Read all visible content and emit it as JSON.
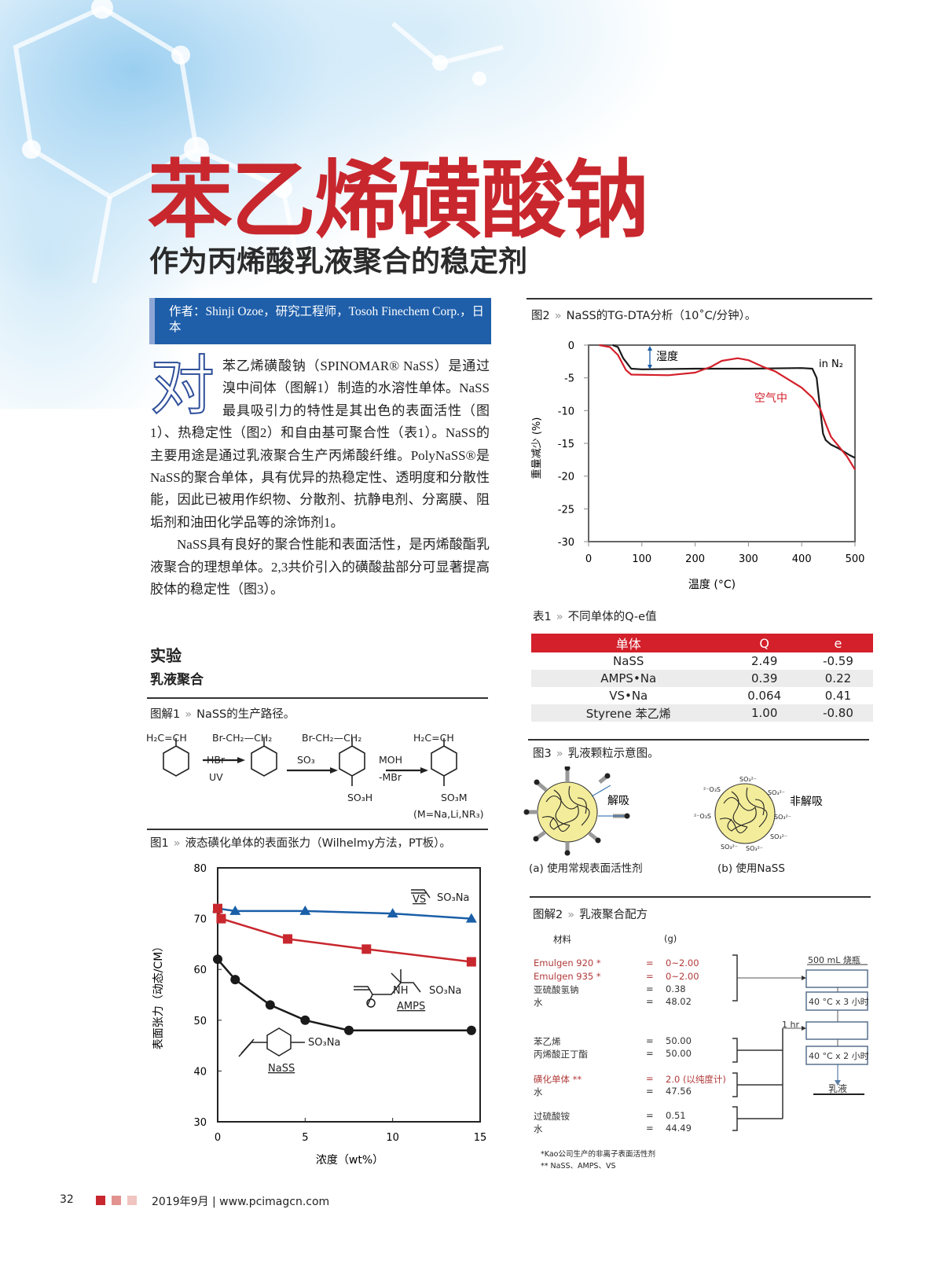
{
  "title": "苯乙烯磺酸钠",
  "subtitle": "作为丙烯酸乳液聚合的稳定剂",
  "author": "作者：Shinji Ozoe，研究工程师，Tosoh Finechem Corp.，日本",
  "dropcap": "对",
  "para1": "苯乙烯磺酸钠（SPINOMAR® NaSS）是通过溴中间体（图解1）制造的水溶性单体。NaSS最具吸引力的特性是其出色的表面活性（图1）、热稳定性（图2）和自由基可聚合性（表1）。NaSS的主要用途是通过乳液聚合生产丙烯酸纤维。PolyNaSS®是NaSS的聚合单体，具有优异的热稳定性、透明度和分散性能，因此已被用作织物、分散剂、抗静电剂、分离膜、阻垢剂和油田化学品等的涂饰剂1。",
  "para2": "NaSS具有良好的聚合性能和表面活性，是丙烯酸酯乳液聚合的理想单体。2,3共价引入的磺酸盐部分可显著提高胶体的稳定性（图3）。",
  "section": "实验",
  "subsection": "乳液聚合",
  "caption_sep": "»",
  "scheme1": {
    "label": "图解1",
    "caption": "NaSS的生产路径。",
    "s1": "H₂C=CH",
    "s2": "Br-CH₂—CH₂",
    "s3": "Br-CH₂—CH₂",
    "s4": "H₂C=CH",
    "r1a": "HBr",
    "r1b": "UV",
    "r2a": "SO₃",
    "r3a": "MOH",
    "r3b": "-MBr",
    "p3": "SO₃H",
    "p4": "SO₃M",
    "note": "(M=Na,Li,NR₃)"
  },
  "fig1": {
    "label": "图1",
    "caption": "液态磺化单体的表面张力（Wilhelmy方法，PT板）。"
  },
  "fig2": {
    "label": "图2",
    "caption": "NaSS的TG-DTA分析（10˚C/分钟）。"
  },
  "table1": {
    "label": "表1",
    "caption": "不同单体的Q-e值",
    "headers": [
      "单体",
      "Q",
      "e"
    ],
    "rows": [
      [
        "NaSS",
        "2.49",
        "-0.59"
      ],
      [
        "AMPS•Na",
        "0.39",
        "0.22"
      ],
      [
        "VS•Na",
        "0.064",
        "0.41"
      ],
      [
        "Styrene 苯乙烯",
        "1.00",
        "-0.80"
      ]
    ]
  },
  "fig3": {
    "label": "图3",
    "caption": "乳液颗粒示意图。",
    "desorb": "解吸",
    "nondesorb": "非解吸",
    "ion": "SO₃²⁻",
    "ion_left": "²⁻O₃S",
    "cap_a": "(a)  使用常规表面活性剂",
    "cap_b": "(b) 使用NaSS",
    "particle_color": "#f3ec9a"
  },
  "scheme2": {
    "label": "图解2",
    "caption": "乳液聚合配方",
    "col_material": "材料",
    "col_unit": "(g)",
    "groups": [
      [
        [
          "Emulgen 920 *",
          "0~2.00",
          true
        ],
        [
          "Emulgen 935 *",
          "0~2.00",
          true
        ],
        [
          "亚硫酸氢钠",
          "0.38",
          false
        ],
        [
          "水",
          "48.02",
          false
        ]
      ],
      [
        [
          "苯乙烯",
          "50.00",
          false
        ],
        [
          "丙烯酸正丁酯",
          "50.00",
          false
        ]
      ],
      [
        [
          "磺化单体 **",
          "2.0 (以纯度计)",
          true
        ],
        [
          "水",
          "47.56",
          false
        ]
      ],
      [
        [
          "过硫酸铵",
          "0.51",
          false
        ],
        [
          "水",
          "44.49",
          false
        ]
      ]
    ],
    "eq": "=",
    "flask": "500 mL 烧瓶",
    "step1": "40 °C x 3 小时",
    "one_hr": "1 hr",
    "step2": "40 °C x 2 小时",
    "product": "乳液",
    "foot1": "*Kao公司生产的非离子表面活性剂",
    "foot2": "** NaSS、AMPS、VS"
  },
  "footer": {
    "page": "32",
    "date": "2019年9月",
    "sep": "|",
    "url": "www.pcimagcn.com",
    "squares": [
      "#c8272e",
      "#e2938f",
      "#f0c4c0"
    ]
  },
  "colors": {
    "title_red": "#c8272e",
    "author_blue": "#1f5faa",
    "table_red": "#d3202b"
  },
  "chart_data": [
    {
      "type": "line",
      "ylabel": "表面张力（动态/CM）",
      "xlabel": "浓度（wt%）",
      "xlim": [
        0,
        15
      ],
      "ylim": [
        30,
        80
      ],
      "xticks": [
        0,
        5,
        10,
        15
      ],
      "yticks": [
        30,
        40,
        50,
        60,
        70,
        80
      ],
      "grid": false,
      "series": [
        {
          "name": "VS",
          "marker": "triangle",
          "color": "#1a5fa8",
          "x": [
            0,
            1,
            5,
            10,
            14.5
          ],
          "y": [
            72,
            71.5,
            71.5,
            71,
            70
          ]
        },
        {
          "name": "AMPS",
          "marker": "square",
          "color": "#c8272e",
          "x": [
            0,
            0.2,
            4,
            8.5,
            14.5
          ],
          "y": [
            72,
            70,
            66,
            64,
            61.5
          ]
        },
        {
          "name": "NaSS",
          "marker": "circle",
          "color": "#1a1a1a",
          "x": [
            0,
            1,
            3,
            5,
            7.5,
            14.5
          ],
          "y": [
            62,
            58,
            53,
            50,
            48,
            48
          ]
        }
      ],
      "structure_labels": {
        "vs": "VS",
        "vs_group": "SO₃Na",
        "amps": "AMPS",
        "amps_nh": "NH",
        "amps_group": "SO₃Na",
        "amps_o": "O",
        "nass": "NaSS",
        "nass_group": "SO₃Na"
      }
    },
    {
      "type": "line",
      "ylabel": "重量减少 (%)",
      "xlabel": "温度 (°C)",
      "xlim": [
        0,
        500
      ],
      "ylim": [
        -30,
        0
      ],
      "xticks": [
        0,
        100,
        200,
        300,
        400,
        500
      ],
      "yticks": [
        0,
        -5,
        -10,
        -15,
        -20,
        -25,
        -30
      ],
      "grid": false,
      "annotations": {
        "moisture": "湿度",
        "n2": "in N₂",
        "air": "空气中"
      },
      "series": [
        {
          "name": "in N₂",
          "color": "#1a1a1a",
          "x": [
            45,
            55,
            65,
            80,
            100,
            200,
            300,
            400,
            420,
            428,
            435,
            440,
            445,
            455,
            470,
            490,
            500
          ],
          "y": [
            0,
            -0.3,
            -2,
            -3.6,
            -3.7,
            -3.6,
            -3.6,
            -3.5,
            -3.6,
            -5,
            -10,
            -13.5,
            -14.5,
            -15.2,
            -15.8,
            -16.8,
            -17.2
          ]
        },
        {
          "name": "空气中",
          "color": "#d3202b",
          "x": [
            20,
            40,
            55,
            70,
            80,
            150,
            200,
            230,
            250,
            280,
            300,
            330,
            350,
            380,
            400,
            420,
            435,
            445,
            455,
            470,
            485,
            500
          ],
          "y": [
            0,
            -0.3,
            -1.5,
            -3.8,
            -4.5,
            -4.6,
            -4.2,
            -3.3,
            -2.4,
            -2,
            -2.3,
            -3.4,
            -4,
            -5.5,
            -6.5,
            -8,
            -9.8,
            -12,
            -14,
            -15.5,
            -17,
            -19
          ]
        }
      ]
    }
  ]
}
